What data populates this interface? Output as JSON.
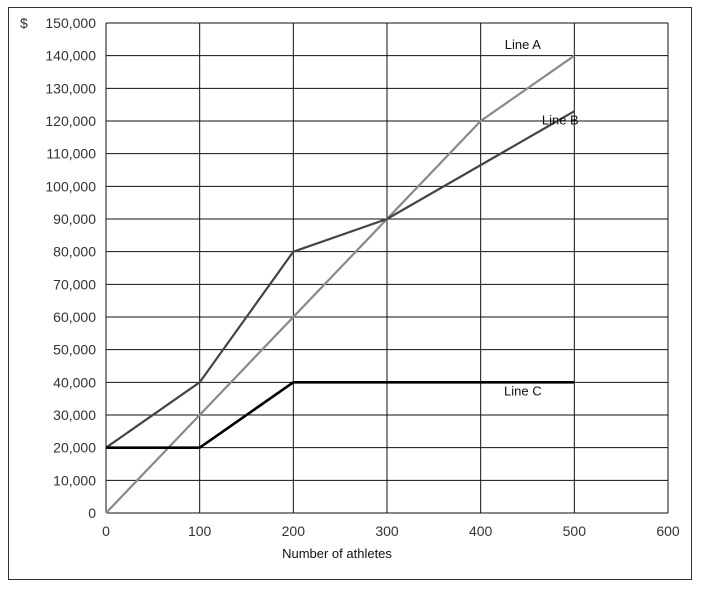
{
  "chart_data": {
    "type": "line",
    "xlabel": "Number of athletes",
    "y_prefix": "$",
    "xlim": [
      0,
      600
    ],
    "ylim": [
      0,
      150000
    ],
    "x_ticks": [
      0,
      100,
      200,
      300,
      400,
      500,
      600
    ],
    "x_tick_labels": [
      "0",
      "100",
      "200",
      "300",
      "400",
      "500",
      "600"
    ],
    "y_ticks": [
      0,
      10000,
      20000,
      30000,
      40000,
      50000,
      60000,
      70000,
      80000,
      90000,
      100000,
      110000,
      120000,
      130000,
      140000,
      150000
    ],
    "y_tick_labels": [
      "0",
      "10,000",
      "20,000",
      "30,000",
      "40,000",
      "50,000",
      "60,000",
      "70,000",
      "80,000",
      "90,000",
      "100,000",
      "110,000",
      "120,000",
      "130,000",
      "140,000",
      "150,000"
    ],
    "grid": true,
    "series": [
      {
        "name": "Line A",
        "color": "#8a8a8a",
        "points": [
          [
            0,
            0
          ],
          [
            400,
            120000
          ],
          [
            500,
            140000
          ]
        ],
        "label_anchor": [
          445,
          142000
        ]
      },
      {
        "name": "Line B",
        "color": "#444444",
        "points": [
          [
            0,
            20000
          ],
          [
            100,
            40000
          ],
          [
            200,
            80000
          ],
          [
            300,
            90000
          ],
          [
            500,
            123000
          ]
        ],
        "label_anchor": [
          485,
          119000
        ]
      },
      {
        "name": "Line C",
        "color": "#000000",
        "points": [
          [
            0,
            20000
          ],
          [
            100,
            20000
          ],
          [
            200,
            40000
          ],
          [
            500,
            40000
          ]
        ],
        "label_anchor": [
          445,
          36000
        ]
      }
    ]
  }
}
